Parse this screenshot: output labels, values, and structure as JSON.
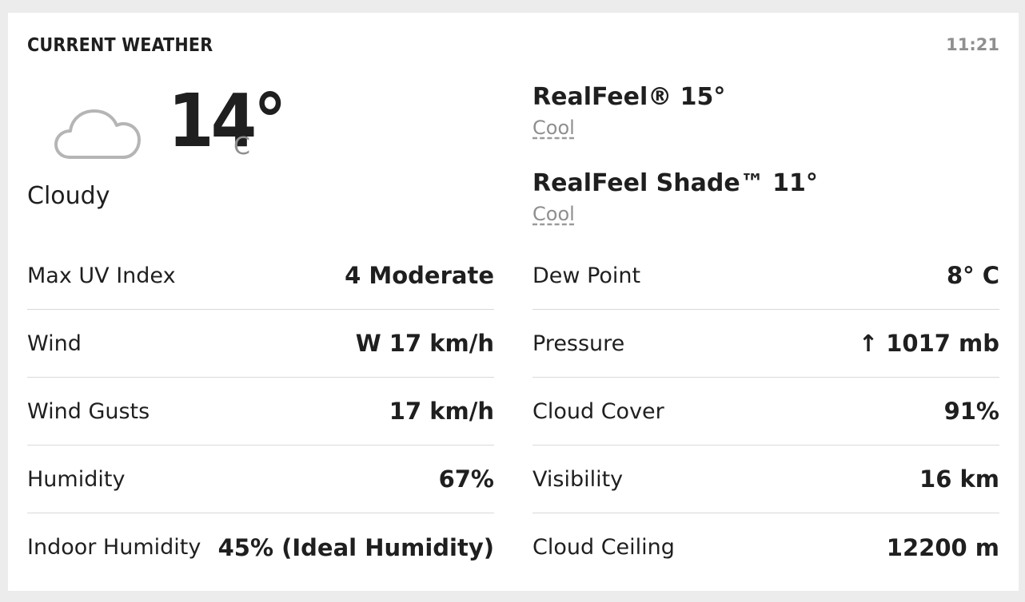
{
  "header": {
    "title": "CURRENT WEATHER",
    "time": "11:21"
  },
  "current": {
    "icon": "cloud-icon",
    "temperature": "14°",
    "unit": "C",
    "phrase": "Cloudy"
  },
  "realfeel": {
    "label": "RealFeel® 15°",
    "label_sub": "Cool",
    "shade_label": "RealFeel Shade™ 11°",
    "shade_sub": "Cool"
  },
  "details_left": [
    {
      "label": "Max UV Index",
      "value": "4 Moderate"
    },
    {
      "label": "Wind",
      "value": "W 17 km/h"
    },
    {
      "label": "Wind Gusts",
      "value": "17 km/h"
    },
    {
      "label": "Humidity",
      "value": "67%"
    },
    {
      "label": "Indoor Humidity",
      "value": "45% (Ideal Humidity)"
    }
  ],
  "details_right": [
    {
      "label": "Dew Point",
      "value": "8° C"
    },
    {
      "label": "Pressure",
      "value": "↑ 1017 mb"
    },
    {
      "label": "Cloud Cover",
      "value": "91%"
    },
    {
      "label": "Visibility",
      "value": "16 km"
    },
    {
      "label": "Cloud Ceiling",
      "value": "12200 m"
    }
  ],
  "colors": {
    "text": "#1f1f1f",
    "muted": "#8f8f8f",
    "divider": "#d9d9d9",
    "background": "#ececec",
    "card": "#ffffff"
  }
}
